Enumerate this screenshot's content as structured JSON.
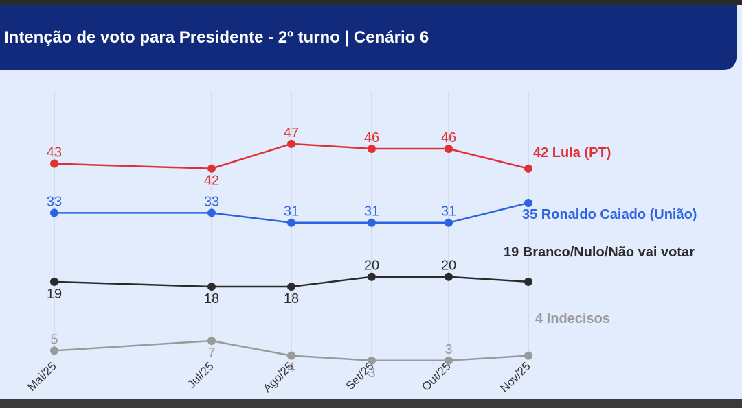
{
  "header": {
    "title": "Intenção de voto para Presidente - 2º turno | Cenário 6"
  },
  "chart_data": {
    "type": "line",
    "title": "Intenção de voto para Presidente - 2º turno | Cenário 6",
    "categories": [
      "Mai/25",
      "Jul/25",
      "Ago/25",
      "Set/25",
      "Out/25",
      "Nov/25"
    ],
    "series": [
      {
        "name": "Lula (PT)",
        "values": [
          43,
          42,
          47,
          46,
          46,
          42
        ],
        "color": "#e03235",
        "end_label": "42 Lula (PT)",
        "label_pos": [
          "above",
          "below",
          "above",
          "above",
          "above",
          "none"
        ]
      },
      {
        "name": "Ronaldo Caiado (União)",
        "values": [
          33,
          33,
          31,
          31,
          31,
          35
        ],
        "color": "#2b63e3",
        "end_label": "35 Ronaldo Caiado (União)",
        "label_pos": [
          "above",
          "above",
          "above",
          "above",
          "above",
          "none"
        ]
      },
      {
        "name": "Branco/Nulo/Não vai votar",
        "values": [
          19,
          18,
          18,
          20,
          20,
          19
        ],
        "color": "#2b2b2b",
        "end_label": "19 Branco/Nulo/Não vai votar",
        "label_pos": [
          "below",
          "below",
          "below",
          "above",
          "above",
          "none"
        ]
      },
      {
        "name": "Indecisos",
        "values": [
          5,
          7,
          4,
          3,
          3,
          4
        ],
        "color": "#9a9a9a",
        "end_label": "4 Indecisos",
        "label_pos": [
          "above",
          "below",
          "below",
          "below",
          "above",
          "none"
        ]
      }
    ],
    "grid": "vertical",
    "legend": "none"
  }
}
